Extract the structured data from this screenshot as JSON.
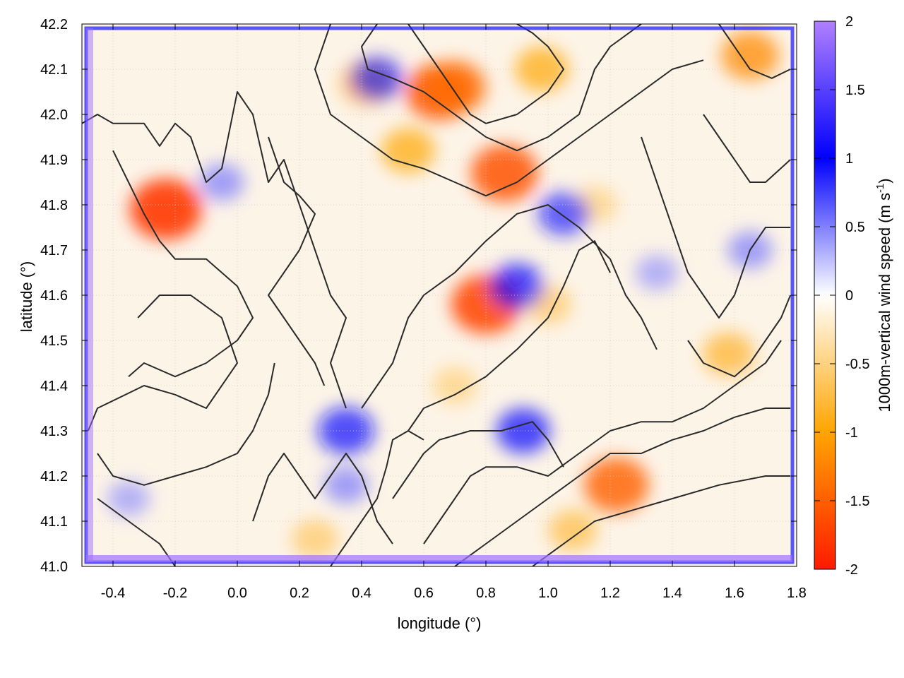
{
  "chart_data": {
    "type": "heatmap",
    "title": "",
    "xlabel": "longitude (°)",
    "ylabel": "latitude (°)",
    "colorbar_label_main": "1000m-vertical wind speed (m s",
    "colorbar_label_sup": "-1",
    "colorbar_label_close": ")",
    "xlim": [
      -0.5,
      1.8
    ],
    "ylim": [
      41.0,
      42.2
    ],
    "x_ticks": [
      -0.4,
      -0.2,
      0.0,
      0.2,
      0.4,
      0.6,
      0.8,
      1.0,
      1.2,
      1.4,
      1.6,
      1.8
    ],
    "x_tick_labels": [
      "-0.4",
      "-0.2",
      "0.0",
      "0.2",
      "0.4",
      "0.6",
      "0.8",
      "1.0",
      "1.2",
      "1.4",
      "1.6",
      "1.8"
    ],
    "y_ticks": [
      41.0,
      41.1,
      41.2,
      41.3,
      41.4,
      41.5,
      41.6,
      41.7,
      41.8,
      41.9,
      42.0,
      42.1,
      42.2
    ],
    "y_tick_labels": [
      "41.0",
      "41.1",
      "41.2",
      "41.3",
      "41.4",
      "41.5",
      "41.6",
      "41.7",
      "41.8",
      "41.9",
      "42.0",
      "42.1",
      "42.2"
    ],
    "colorbar_range": [
      -2,
      2
    ],
    "colorbar_ticks": [
      -2,
      -1.5,
      -1,
      -0.5,
      0,
      0.5,
      1,
      1.5,
      2
    ],
    "colorbar_tick_labels": [
      "-2",
      "-1.5",
      "-1",
      "-0.5",
      "0",
      "0.5",
      "1",
      "1.5",
      "2"
    ],
    "colormap": [
      {
        "value": -2,
        "color": "#ff1a00"
      },
      {
        "value": -1,
        "color": "#ffa500"
      },
      {
        "value": 0,
        "color": "#ffffff"
      },
      {
        "value": 1,
        "color": "#0000ff"
      },
      {
        "value": 2,
        "color": "#b080ff"
      }
    ],
    "grid": "dotted",
    "hotspots": [
      {
        "lon": -0.23,
        "lat": 41.79,
        "value": -1.8
      },
      {
        "lon": 0.8,
        "lat": 41.58,
        "value": -1.7
      },
      {
        "lon": 0.86,
        "lat": 41.87,
        "value": -1.6
      },
      {
        "lon": 0.65,
        "lat": 42.05,
        "value": -1.6
      },
      {
        "lon": 0.7,
        "lat": 42.06,
        "value": -1.4
      },
      {
        "lon": 0.42,
        "lat": 42.07,
        "value": -1.0
      },
      {
        "lon": 0.55,
        "lat": 41.92,
        "value": -1.0
      },
      {
        "lon": 0.98,
        "lat": 42.1,
        "value": -1.0
      },
      {
        "lon": 1.22,
        "lat": 41.18,
        "value": -1.5
      },
      {
        "lon": 1.65,
        "lat": 42.13,
        "value": -1.2
      },
      {
        "lon": 1.58,
        "lat": 41.47,
        "value": -0.9
      },
      {
        "lon": 1.0,
        "lat": 41.58,
        "value": -0.7
      },
      {
        "lon": 1.08,
        "lat": 41.08,
        "value": -0.8
      },
      {
        "lon": 0.25,
        "lat": 41.06,
        "value": -0.7
      },
      {
        "lon": 0.7,
        "lat": 41.4,
        "value": -0.6
      },
      {
        "lon": 1.15,
        "lat": 41.8,
        "value": -0.6
      },
      {
        "lon": 0.35,
        "lat": 41.3,
        "value": 1.1
      },
      {
        "lon": 0.92,
        "lat": 41.3,
        "value": 1.0
      },
      {
        "lon": 0.9,
        "lat": 41.62,
        "value": 1.0
      },
      {
        "lon": 1.05,
        "lat": 41.78,
        "value": 0.9
      },
      {
        "lon": 0.45,
        "lat": 42.08,
        "value": 0.9
      },
      {
        "lon": -0.05,
        "lat": 41.85,
        "value": 0.6
      },
      {
        "lon": 0.35,
        "lat": 41.18,
        "value": 0.6
      },
      {
        "lon": -0.35,
        "lat": 41.15,
        "value": 0.5
      },
      {
        "lon": 1.35,
        "lat": 41.65,
        "value": 0.5
      },
      {
        "lon": 1.65,
        "lat": 41.7,
        "value": 0.6
      }
    ],
    "contours": [
      [
        [
          -0.5,
          41.98
        ],
        [
          -0.45,
          42.0
        ],
        [
          -0.4,
          41.98
        ],
        [
          -0.3,
          41.98
        ],
        [
          -0.25,
          41.93
        ],
        [
          -0.2,
          41.98
        ],
        [
          -0.15,
          41.95
        ],
        [
          -0.1,
          41.85
        ],
        [
          -0.05,
          41.88
        ],
        [
          0.0,
          42.05
        ],
        [
          0.05,
          42.0
        ],
        [
          0.1,
          41.85
        ],
        [
          0.15,
          41.9
        ],
        [
          0.2,
          41.8
        ],
        [
          0.25,
          41.7
        ],
        [
          0.3,
          41.6
        ],
        [
          0.35,
          41.55
        ],
        [
          0.3,
          41.45
        ],
        [
          0.35,
          41.35
        ]
      ],
      [
        [
          -0.4,
          41.92
        ],
        [
          -0.35,
          41.85
        ],
        [
          -0.3,
          41.78
        ],
        [
          -0.25,
          41.72
        ],
        [
          -0.2,
          41.68
        ],
        [
          -0.1,
          41.68
        ],
        [
          0.0,
          41.62
        ],
        [
          0.05,
          41.55
        ],
        [
          0.0,
          41.5
        ],
        [
          -0.1,
          41.45
        ],
        [
          -0.2,
          41.42
        ],
        [
          -0.3,
          41.45
        ],
        [
          -0.35,
          41.42
        ]
      ],
      [
        [
          -0.32,
          41.55
        ],
        [
          -0.25,
          41.6
        ],
        [
          -0.15,
          41.6
        ],
        [
          -0.05,
          41.55
        ],
        [
          0.0,
          41.45
        ],
        [
          -0.1,
          41.35
        ],
        [
          -0.2,
          41.38
        ],
        [
          -0.3,
          41.4
        ],
        [
          -0.45,
          41.35
        ],
        [
          -0.48,
          41.3
        ]
      ],
      [
        [
          -0.45,
          41.25
        ],
        [
          -0.4,
          41.2
        ],
        [
          -0.3,
          41.18
        ],
        [
          -0.2,
          41.2
        ],
        [
          -0.1,
          41.22
        ],
        [
          0.0,
          41.25
        ],
        [
          0.05,
          41.3
        ],
        [
          0.1,
          41.38
        ],
        [
          0.12,
          41.45
        ]
      ],
      [
        [
          -0.45,
          41.15
        ],
        [
          -0.35,
          41.1
        ],
        [
          -0.25,
          41.05
        ],
        [
          -0.2,
          41.0
        ]
      ],
      [
        [
          0.05,
          41.1
        ],
        [
          0.1,
          41.2
        ],
        [
          0.15,
          41.25
        ],
        [
          0.2,
          41.2
        ],
        [
          0.25,
          41.15
        ],
        [
          0.3,
          41.2
        ],
        [
          0.35,
          41.25
        ],
        [
          0.4,
          41.2
        ],
        [
          0.45,
          41.1
        ],
        [
          0.5,
          41.05
        ]
      ],
      [
        [
          0.4,
          41.35
        ],
        [
          0.45,
          41.4
        ],
        [
          0.5,
          41.45
        ],
        [
          0.55,
          41.55
        ],
        [
          0.6,
          41.6
        ],
        [
          0.7,
          41.65
        ],
        [
          0.8,
          41.72
        ],
        [
          0.9,
          41.78
        ],
        [
          1.0,
          41.8
        ],
        [
          1.1,
          41.75
        ],
        [
          1.2,
          41.68
        ],
        [
          1.25,
          41.6
        ],
        [
          1.3,
          41.55
        ],
        [
          1.35,
          41.48
        ]
      ],
      [
        [
          0.55,
          41.3
        ],
        [
          0.6,
          41.35
        ],
        [
          0.7,
          41.38
        ],
        [
          0.8,
          41.42
        ],
        [
          0.9,
          41.48
        ],
        [
          1.0,
          41.55
        ],
        [
          1.05,
          41.62
        ],
        [
          1.1,
          41.7
        ],
        [
          1.15,
          41.72
        ],
        [
          1.2,
          41.65
        ]
      ],
      [
        [
          0.5,
          41.15
        ],
        [
          0.55,
          41.2
        ],
        [
          0.6,
          41.25
        ],
        [
          0.65,
          41.28
        ],
        [
          0.75,
          41.3
        ],
        [
          0.85,
          41.3
        ],
        [
          0.95,
          41.32
        ],
        [
          1.0,
          41.28
        ],
        [
          1.05,
          41.22
        ]
      ],
      [
        [
          0.6,
          41.05
        ],
        [
          0.65,
          41.1
        ],
        [
          0.7,
          41.15
        ],
        [
          0.75,
          41.2
        ],
        [
          0.8,
          41.22
        ],
        [
          0.9,
          41.22
        ],
        [
          1.0,
          41.2
        ],
        [
          1.1,
          41.25
        ],
        [
          1.2,
          41.3
        ],
        [
          1.3,
          41.32
        ],
        [
          1.4,
          41.32
        ],
        [
          1.5,
          41.35
        ],
        [
          1.6,
          41.4
        ],
        [
          1.7,
          41.45
        ],
        [
          1.75,
          41.5
        ]
      ],
      [
        [
          0.7,
          41.0
        ],
        [
          0.8,
          41.05
        ],
        [
          0.9,
          41.1
        ],
        [
          1.0,
          41.15
        ],
        [
          1.1,
          41.2
        ],
        [
          1.2,
          41.25
        ],
        [
          1.3,
          41.25
        ],
        [
          1.4,
          41.28
        ],
        [
          1.5,
          41.3
        ],
        [
          1.6,
          41.33
        ],
        [
          1.7,
          41.35
        ],
        [
          1.78,
          41.35
        ]
      ],
      [
        [
          0.95,
          41.0
        ],
        [
          1.05,
          41.05
        ],
        [
          1.15,
          41.1
        ],
        [
          1.25,
          41.12
        ],
        [
          1.4,
          41.15
        ],
        [
          1.55,
          41.18
        ],
        [
          1.7,
          41.2
        ],
        [
          1.78,
          41.2
        ]
      ],
      [
        [
          0.55,
          42.2
        ],
        [
          0.6,
          42.15
        ],
        [
          0.65,
          42.1
        ],
        [
          0.7,
          42.05
        ],
        [
          0.75,
          42.0
        ],
        [
          0.8,
          41.98
        ],
        [
          0.9,
          42.0
        ],
        [
          1.0,
          42.05
        ],
        [
          1.05,
          42.1
        ],
        [
          1.0,
          42.15
        ],
        [
          0.95,
          42.18
        ],
        [
          0.9,
          42.2
        ]
      ],
      [
        [
          0.45,
          42.2
        ],
        [
          0.4,
          42.15
        ],
        [
          0.42,
          42.1
        ],
        [
          0.5,
          42.08
        ],
        [
          0.6,
          42.05
        ],
        [
          0.7,
          42.0
        ],
        [
          0.8,
          41.95
        ],
        [
          0.9,
          41.92
        ],
        [
          1.0,
          41.95
        ],
        [
          1.1,
          42.0
        ],
        [
          1.15,
          42.1
        ],
        [
          1.2,
          42.15
        ],
        [
          1.3,
          42.2
        ]
      ],
      [
        [
          0.3,
          42.2
        ],
        [
          0.25,
          42.1
        ],
        [
          0.3,
          42.0
        ],
        [
          0.4,
          41.95
        ],
        [
          0.5,
          41.9
        ],
        [
          0.6,
          41.88
        ],
        [
          0.7,
          41.85
        ],
        [
          0.8,
          41.82
        ],
        [
          0.9,
          41.85
        ],
        [
          1.0,
          41.9
        ],
        [
          1.1,
          41.95
        ],
        [
          1.2,
          42.0
        ],
        [
          1.3,
          42.05
        ],
        [
          1.4,
          42.1
        ],
        [
          1.5,
          42.12
        ]
      ],
      [
        [
          1.3,
          41.95
        ],
        [
          1.35,
          41.85
        ],
        [
          1.4,
          41.75
        ],
        [
          1.45,
          41.65
        ],
        [
          1.5,
          41.6
        ],
        [
          1.55,
          41.55
        ],
        [
          1.6,
          41.6
        ],
        [
          1.65,
          41.7
        ],
        [
          1.7,
          41.75
        ],
        [
          1.78,
          41.75
        ]
      ],
      [
        [
          1.45,
          41.5
        ],
        [
          1.5,
          41.45
        ],
        [
          1.6,
          41.42
        ],
        [
          1.65,
          41.45
        ],
        [
          1.7,
          41.5
        ],
        [
          1.75,
          41.55
        ],
        [
          1.78,
          41.6
        ]
      ],
      [
        [
          1.5,
          42.0
        ],
        [
          1.55,
          41.95
        ],
        [
          1.6,
          41.9
        ],
        [
          1.65,
          41.85
        ],
        [
          1.7,
          41.85
        ],
        [
          1.78,
          41.9
        ]
      ],
      [
        [
          1.55,
          42.2
        ],
        [
          1.6,
          42.15
        ],
        [
          1.65,
          42.1
        ],
        [
          1.72,
          42.08
        ],
        [
          1.78,
          42.1
        ]
      ],
      [
        [
          0.1,
          41.95
        ],
        [
          0.15,
          41.85
        ],
        [
          0.2,
          41.82
        ],
        [
          0.25,
          41.78
        ],
        [
          0.2,
          41.7
        ],
        [
          0.15,
          41.65
        ],
        [
          0.1,
          41.6
        ],
        [
          0.15,
          41.55
        ],
        [
          0.2,
          41.5
        ],
        [
          0.25,
          41.45
        ],
        [
          0.28,
          41.4
        ]
      ],
      [
        [
          0.3,
          41.0
        ],
        [
          0.35,
          41.05
        ],
        [
          0.4,
          41.1
        ],
        [
          0.45,
          41.15
        ],
        [
          0.48,
          41.22
        ],
        [
          0.5,
          41.28
        ],
        [
          0.55,
          41.3
        ],
        [
          0.6,
          41.28
        ]
      ]
    ]
  }
}
